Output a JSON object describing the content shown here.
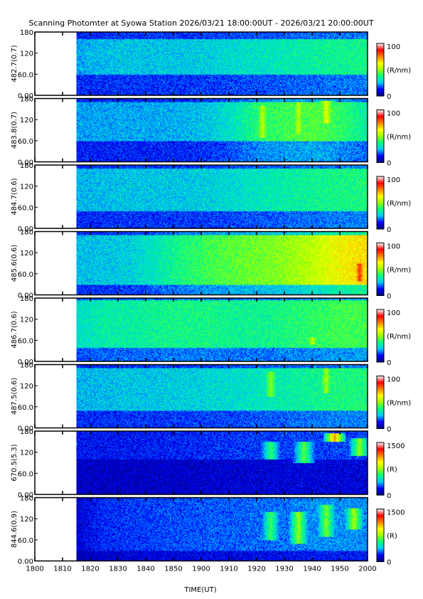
{
  "chart_data": {
    "type": "heatmap",
    "title": "Scanning Photomter at Syowa Station 2026/03/21 18:00:00UT - 2026/03/21 20:00:00UT",
    "xlabel": "TIME(UT)",
    "x_ticks": [
      "1800",
      "1810",
      "1820",
      "1830",
      "1840",
      "1850",
      "1900",
      "1910",
      "1920",
      "1930",
      "1940",
      "1950",
      "2000"
    ],
    "xlim": [
      "1800",
      "2000"
    ],
    "data_start": "1815",
    "y_ticks": [
      "0.00",
      "60.0",
      "120",
      "180"
    ],
    "ylim": [
      0,
      180
    ],
    "colormap": [
      "#000080",
      "#0000ff",
      "#00c8ff",
      "#00ff80",
      "#9cff00",
      "#ffff00",
      "#ff8000",
      "#ff0000",
      "#ffffff"
    ],
    "panels": [
      {
        "label": "482.7(0.7)",
        "colorbar_max": "100",
        "colorbar_min": "0",
        "unit": "(R/nm)",
        "intensity": [
          0.24,
          0.26,
          0.27,
          0.27,
          0.27,
          0.28,
          0.3,
          0.31,
          0.33,
          0.35,
          0.36,
          0.37
        ],
        "band": [
          60,
          160
        ],
        "events": []
      },
      {
        "label": "483.8(0.7)",
        "colorbar_max": "100",
        "colorbar_min": "0",
        "unit": "(R/nm)",
        "intensity": [
          0.23,
          0.24,
          0.24,
          0.24,
          0.25,
          0.27,
          0.32,
          0.4,
          0.42,
          0.44,
          0.4,
          0.34
        ],
        "band": [
          60,
          170
        ],
        "events": [
          {
            "t": "1922",
            "lo": 70,
            "hi": 160,
            "v": 0.55
          },
          {
            "t": "1935",
            "lo": 80,
            "hi": 170,
            "v": 0.55
          },
          {
            "t": "1945",
            "lo": 110,
            "hi": 175,
            "v": 0.6
          }
        ]
      },
      {
        "label": "484.7(0.6)",
        "colorbar_max": "100",
        "colorbar_min": "0",
        "unit": "(R/nm)",
        "intensity": [
          0.25,
          0.26,
          0.27,
          0.27,
          0.27,
          0.28,
          0.3,
          0.32,
          0.34,
          0.36,
          0.37,
          0.38
        ],
        "band": [
          50,
          170
        ],
        "events": []
      },
      {
        "label": "485.6(0.6)",
        "colorbar_max": "100",
        "colorbar_min": "0",
        "unit": "(R/nm)",
        "intensity": [
          0.26,
          0.27,
          0.28,
          0.32,
          0.38,
          0.42,
          0.45,
          0.47,
          0.5,
          0.55,
          0.62,
          0.66
        ],
        "band": [
          30,
          170
        ],
        "events": [
          {
            "t": "1957",
            "lo": 40,
            "hi": 90,
            "v": 0.85
          }
        ]
      },
      {
        "label": "486.7(0.6)",
        "colorbar_max": "100",
        "colorbar_min": "0",
        "unit": "(R/nm)",
        "intensity": [
          0.3,
          0.34,
          0.34,
          0.36,
          0.37,
          0.37,
          0.36,
          0.36,
          0.38,
          0.4,
          0.42,
          0.42
        ],
        "band": [
          40,
          175
        ],
        "events": [
          {
            "t": "1940",
            "lo": 50,
            "hi": 70,
            "v": 0.55
          }
        ]
      },
      {
        "label": "487.5(0.6)",
        "colorbar_max": "100",
        "colorbar_min": "0",
        "unit": "(R/nm)",
        "intensity": [
          0.25,
          0.26,
          0.27,
          0.27,
          0.28,
          0.29,
          0.3,
          0.32,
          0.34,
          0.36,
          0.38,
          0.38
        ],
        "band": [
          50,
          170
        ],
        "events": [
          {
            "t": "1925",
            "lo": 90,
            "hi": 160,
            "v": 0.5
          },
          {
            "t": "1945",
            "lo": 100,
            "hi": 170,
            "v": 0.52
          }
        ]
      },
      {
        "label": "670.5(5.3)",
        "colorbar_max": "1500",
        "colorbar_min": "0",
        "unit": "(R)",
        "intensity": [
          0.12,
          0.12,
          0.12,
          0.13,
          0.13,
          0.14,
          0.15,
          0.15,
          0.16,
          0.16,
          0.16,
          0.16
        ],
        "band": [
          100,
          180
        ],
        "events": [
          {
            "t": "1925",
            "lo": 100,
            "hi": 150,
            "v": 0.4
          },
          {
            "t": "1937",
            "lo": 90,
            "hi": 150,
            "v": 0.45
          },
          {
            "t": "1948",
            "lo": 150,
            "hi": 175,
            "v": 0.72
          },
          {
            "t": "1957",
            "lo": 110,
            "hi": 160,
            "v": 0.5
          }
        ]
      },
      {
        "label": "844.6(0.9)",
        "colorbar_max": "1500",
        "colorbar_min": "0",
        "unit": "(R)",
        "intensity": [
          0.08,
          0.14,
          0.15,
          0.16,
          0.17,
          0.18,
          0.18,
          0.19,
          0.2,
          0.22,
          0.22,
          0.22
        ],
        "band": [
          30,
          180
        ],
        "events": [
          {
            "t": "1925",
            "lo": 60,
            "hi": 140,
            "v": 0.42
          },
          {
            "t": "1935",
            "lo": 50,
            "hi": 140,
            "v": 0.5
          },
          {
            "t": "1945",
            "lo": 70,
            "hi": 160,
            "v": 0.48
          },
          {
            "t": "1955",
            "lo": 90,
            "hi": 150,
            "v": 0.52
          }
        ]
      }
    ]
  }
}
